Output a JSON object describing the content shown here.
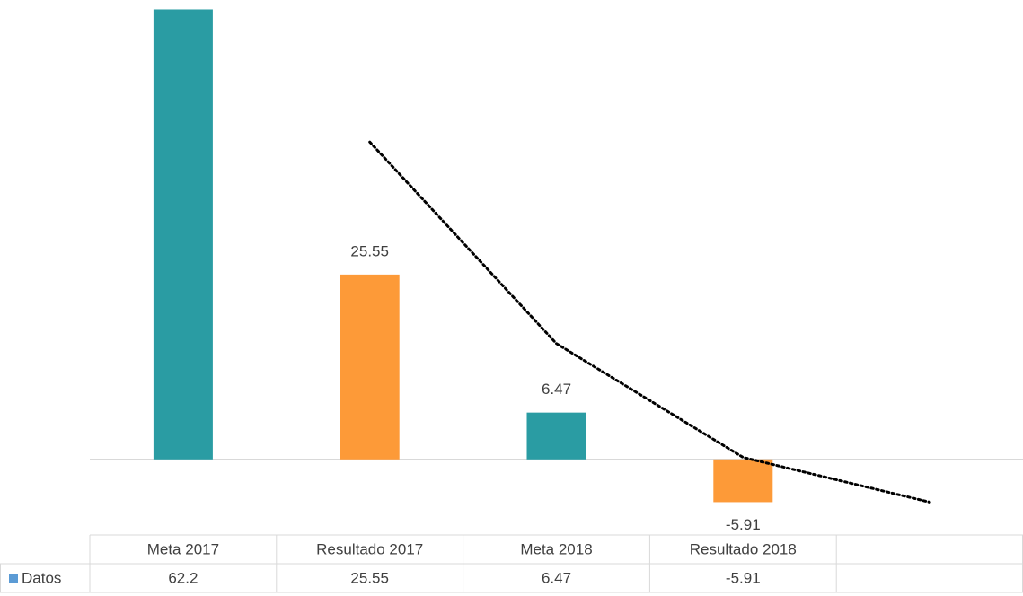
{
  "chart_data": {
    "type": "bar",
    "categories": [
      "Meta 2017",
      "Resultado 2017",
      "Meta 2018",
      "Resultado 2018",
      null
    ],
    "series": [
      {
        "name": "Datos",
        "color": "#5b9bd5",
        "values": [
          62.2,
          25.55,
          6.47,
          -5.91,
          null
        ],
        "bar_colors": [
          "#2a9ca3",
          "#fd9a38",
          "#2a9ca3",
          "#fd9a38",
          null
        ]
      }
    ],
    "trendline": {
      "type": "moving-average",
      "color": "#000000",
      "values": [
        null,
        43.875,
        16.01,
        0.28,
        -5.91
      ]
    },
    "data_labels": [
      false,
      true,
      true,
      true,
      false
    ],
    "data_table": true,
    "ylim": [
      -10,
      63.5
    ]
  }
}
